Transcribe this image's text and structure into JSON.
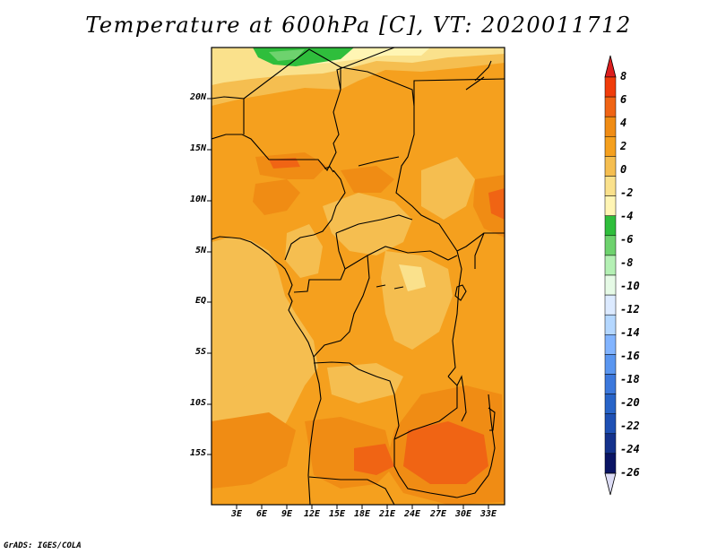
{
  "title": "Temperature at 600hPa [C], VT: 2020011712",
  "footer": "GrADS: IGES/COLA",
  "map": {
    "lat_labels": [
      "20N",
      "15N",
      "10N",
      "5N",
      "EQ",
      "5S",
      "10S",
      "15S"
    ],
    "lon_labels": [
      "3E",
      "6E",
      "9E",
      "12E",
      "15E",
      "18E",
      "21E",
      "24E",
      "27E",
      "30E",
      "33E"
    ]
  },
  "colorbar": {
    "labels": [
      "8",
      "6",
      "4",
      "2",
      "0",
      "-2",
      "-4",
      "-6",
      "-8",
      "-10",
      "-12",
      "-14",
      "-16",
      "-18",
      "-20",
      "-22",
      "-24",
      "-26"
    ],
    "colors": [
      "#dc1e1e",
      "#f03c0a",
      "#f06414",
      "#f08c14",
      "#f5a01e",
      "#f5be50",
      "#fae18c",
      "#fff5b4",
      "#2fbe3c",
      "#6ed26e",
      "#b4f0b4",
      "#e6fae6",
      "#dceaff",
      "#b4d7ff",
      "#82b4ff",
      "#5a96f0",
      "#3c78dc",
      "#2864c8",
      "#1e50b4",
      "#14328c",
      "#0a1464",
      "#dcdcf5"
    ]
  },
  "palette": {
    "yellow_light": "#fff5b4",
    "yellow": "#fae18c",
    "orange_light": "#f5be50",
    "orange": "#f5a01e",
    "orange_dark": "#f08c14",
    "red_orange": "#f06414",
    "green": "#2fbe3c",
    "green_light": "#6ed26e"
  }
}
